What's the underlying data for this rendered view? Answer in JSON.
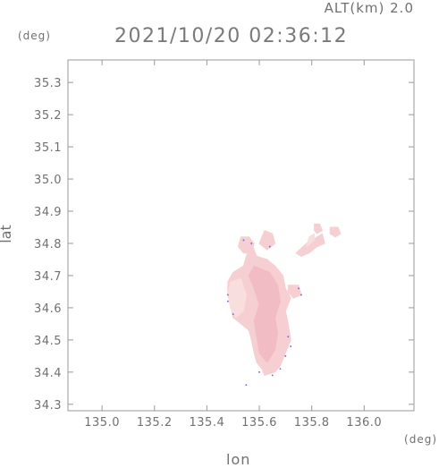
{
  "header": {
    "alt_text": "ALT(km) 2.0",
    "timestamp": "2021/10/20 02:36:12"
  },
  "axis_units": {
    "y_unit": "(deg)",
    "x_unit": "(deg)"
  },
  "chart_data": {
    "type": "heatmap",
    "title": "2021/10/20 02:36:12",
    "subtitle": "ALT(km) 2.0",
    "xlabel": "lon",
    "ylabel": "lat",
    "xlim": [
      134.87,
      136.19
    ],
    "ylim": [
      34.28,
      35.37
    ],
    "x_ticks": [
      "135.0",
      "135.2",
      "135.4",
      "135.6",
      "135.8",
      "136.0"
    ],
    "x_tick_values": [
      135.0,
      135.2,
      135.4,
      135.6,
      135.8,
      136.0
    ],
    "y_ticks": [
      "34.3",
      "34.4",
      "34.5",
      "34.6",
      "34.7",
      "34.8",
      "34.9",
      "35.0",
      "35.1",
      "35.2",
      "35.3"
    ],
    "y_tick_values": [
      34.3,
      34.4,
      34.5,
      34.6,
      34.7,
      34.8,
      34.9,
      35.0,
      35.1,
      35.2,
      35.3
    ],
    "grid": false,
    "colors": {
      "echo_light": "#f9dede",
      "echo_main": "#f6cfd2",
      "echo_strong": "#f1bcc3",
      "edge": "#6a63d0"
    },
    "regions": [
      {
        "name": "main",
        "level": "echo_main",
        "outline": [
          [
            135.57,
            34.8
          ],
          [
            135.59,
            34.76
          ],
          [
            135.63,
            34.75
          ],
          [
            135.66,
            34.73
          ],
          [
            135.69,
            34.7
          ],
          [
            135.7,
            34.66
          ],
          [
            135.72,
            34.63
          ],
          [
            135.7,
            34.59
          ],
          [
            135.71,
            34.55
          ],
          [
            135.72,
            34.5
          ],
          [
            135.7,
            34.46
          ],
          [
            135.68,
            34.42
          ],
          [
            135.66,
            34.4
          ],
          [
            135.62,
            34.39
          ],
          [
            135.61,
            34.41
          ],
          [
            135.59,
            34.43
          ],
          [
            135.58,
            34.46
          ],
          [
            135.57,
            34.5
          ],
          [
            135.56,
            34.53
          ],
          [
            135.53,
            34.55
          ],
          [
            135.5,
            34.57
          ],
          [
            135.49,
            34.61
          ],
          [
            135.48,
            34.64
          ],
          [
            135.48,
            34.68
          ],
          [
            135.5,
            34.71
          ],
          [
            135.54,
            34.73
          ],
          [
            135.55,
            34.76
          ]
        ]
      },
      {
        "name": "core",
        "level": "echo_strong",
        "outline": [
          [
            135.58,
            34.73
          ],
          [
            135.64,
            34.71
          ],
          [
            135.67,
            34.67
          ],
          [
            135.68,
            34.62
          ],
          [
            135.66,
            34.57
          ],
          [
            135.67,
            34.52
          ],
          [
            135.66,
            34.47
          ],
          [
            135.63,
            34.43
          ],
          [
            135.6,
            34.46
          ],
          [
            135.59,
            34.51
          ],
          [
            135.58,
            34.56
          ],
          [
            135.6,
            34.61
          ],
          [
            135.58,
            34.66
          ],
          [
            135.56,
            34.7
          ]
        ]
      },
      {
        "name": "light-west",
        "level": "echo_light",
        "outline": [
          [
            135.49,
            34.68
          ],
          [
            135.53,
            34.69
          ],
          [
            135.55,
            34.64
          ],
          [
            135.54,
            34.59
          ],
          [
            135.51,
            34.57
          ],
          [
            135.49,
            34.6
          ],
          [
            135.48,
            34.64
          ]
        ]
      },
      {
        "name": "north-patch",
        "level": "echo_main",
        "outline": [
          [
            135.53,
            34.82
          ],
          [
            135.56,
            34.82
          ],
          [
            135.58,
            34.8
          ],
          [
            135.57,
            34.77
          ],
          [
            135.54,
            34.77
          ],
          [
            135.52,
            34.79
          ]
        ]
      },
      {
        "name": "ne-patch",
        "level": "echo_main",
        "outline": [
          [
            135.62,
            34.84
          ],
          [
            135.65,
            34.83
          ],
          [
            135.66,
            34.8
          ],
          [
            135.63,
            34.78
          ],
          [
            135.6,
            34.8
          ]
        ]
      },
      {
        "name": "east-blob",
        "level": "echo_main",
        "outline": [
          [
            135.71,
            34.67
          ],
          [
            135.75,
            34.67
          ],
          [
            135.76,
            34.64
          ],
          [
            135.73,
            34.63
          ],
          [
            135.71,
            34.65
          ]
        ]
      },
      {
        "name": "ne-band",
        "level": "echo_main",
        "outline": [
          [
            135.74,
            34.77
          ],
          [
            135.78,
            34.8
          ],
          [
            135.82,
            34.82
          ],
          [
            135.84,
            34.83
          ],
          [
            135.85,
            34.8
          ],
          [
            135.82,
            34.79
          ],
          [
            135.79,
            34.77
          ],
          [
            135.76,
            34.76
          ]
        ]
      },
      {
        "name": "ne-top",
        "level": "echo_main",
        "outline": [
          [
            135.81,
            34.86
          ],
          [
            135.83,
            34.86
          ],
          [
            135.84,
            34.84
          ],
          [
            135.82,
            34.83
          ],
          [
            135.81,
            34.84
          ]
        ]
      },
      {
        "name": "far-east",
        "level": "echo_main",
        "outline": [
          [
            135.87,
            34.85
          ],
          [
            135.9,
            34.85
          ],
          [
            135.91,
            34.83
          ],
          [
            135.89,
            34.82
          ],
          [
            135.87,
            34.83
          ]
        ]
      },
      {
        "name": "ne-connector",
        "level": "echo_light",
        "outline": [
          [
            135.78,
            34.79
          ],
          [
            135.81,
            34.81
          ],
          [
            135.81,
            34.83
          ],
          [
            135.79,
            34.82
          ]
        ]
      }
    ],
    "edge_points": [
      [
        135.54,
        34.81
      ],
      [
        135.57,
        34.8
      ],
      [
        135.64,
        34.79
      ],
      [
        135.48,
        34.62
      ],
      [
        135.48,
        34.64
      ],
      [
        135.5,
        34.58
      ],
      [
        135.71,
        34.51
      ],
      [
        135.72,
        34.48
      ],
      [
        135.7,
        34.45
      ],
      [
        135.68,
        34.41
      ],
      [
        135.65,
        34.39
      ],
      [
        135.6,
        34.4
      ],
      [
        135.55,
        34.36
      ],
      [
        135.75,
        34.66
      ],
      [
        135.76,
        34.64
      ]
    ]
  }
}
